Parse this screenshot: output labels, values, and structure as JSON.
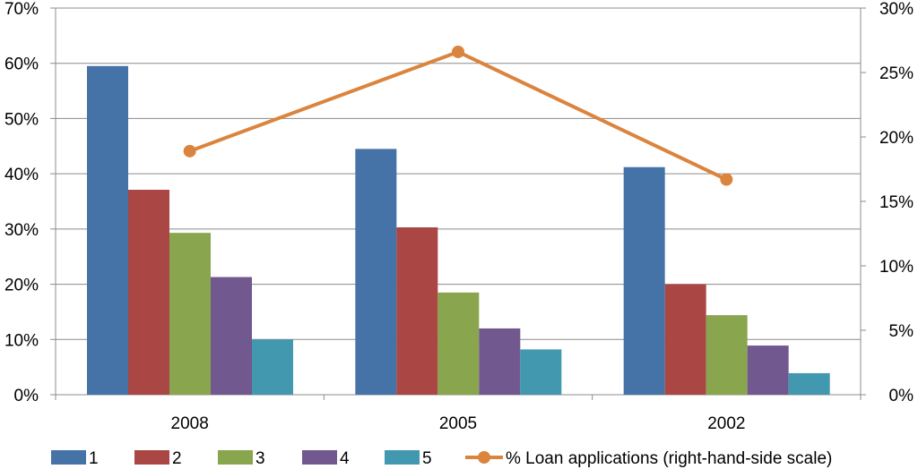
{
  "chart_data": {
    "type": "bar",
    "title": "",
    "categories": [
      "2008",
      "2005",
      "2002"
    ],
    "y_left": {
      "min": 0,
      "max": 70,
      "step": 10,
      "tick_labels": [
        "0%",
        "10%",
        "20%",
        "30%",
        "40%",
        "50%",
        "60%",
        "70%"
      ]
    },
    "y_right": {
      "min": 0,
      "max": 30,
      "step": 5,
      "tick_labels": [
        "0%",
        "5%",
        "10%",
        "15%",
        "20%",
        "25%",
        "30%"
      ]
    },
    "grid": true,
    "legend_position": "bottom",
    "series": [
      {
        "name": "1",
        "color": "#4572A7",
        "values": [
          59.5,
          44.5,
          41.2
        ]
      },
      {
        "name": "2",
        "color": "#AA4643",
        "values": [
          37.1,
          30.3,
          20.0
        ]
      },
      {
        "name": "3",
        "color": "#89A54E",
        "values": [
          29.3,
          18.5,
          14.4
        ]
      },
      {
        "name": "4",
        "color": "#71588F",
        "values": [
          21.3,
          12.0,
          8.9
        ]
      },
      {
        "name": "5",
        "color": "#4198AF",
        "values": [
          10.0,
          8.2,
          3.9
        ]
      }
    ],
    "line_series": {
      "name": "% Loan applications (right-hand-side scale)",
      "color": "#DB843D",
      "axis": "right",
      "values": [
        18.9,
        26.6,
        16.7
      ]
    }
  }
}
